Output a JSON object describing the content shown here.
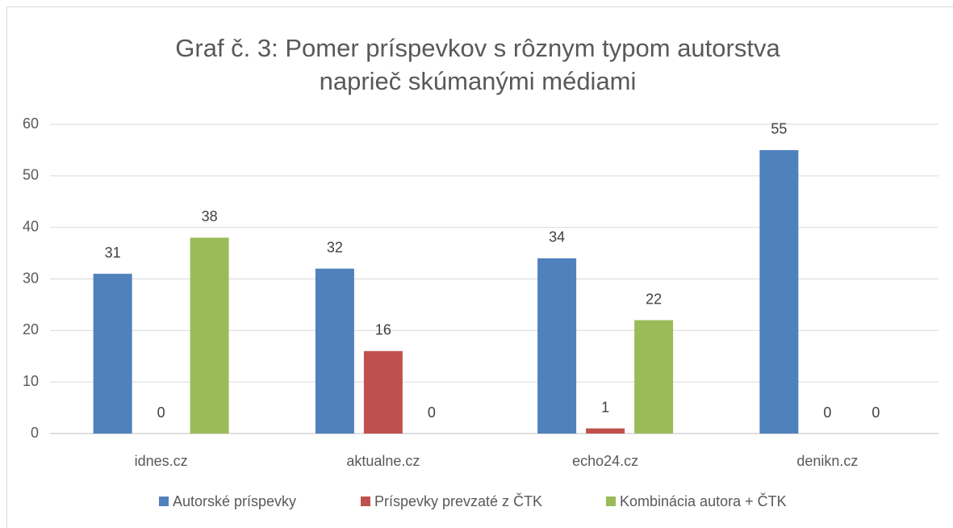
{
  "chart_data": {
    "type": "bar",
    "title": [
      "Graf č. 3: Pomer príspevkov s rôznym typom autorstva",
      "naprieč skúmanými médiami"
    ],
    "categories": [
      "idnes.cz",
      "aktualne.cz",
      "echo24.cz",
      "denikn.cz"
    ],
    "series": [
      {
        "name": "Autorské príspevky",
        "color": "#4f81bd",
        "values": [
          31,
          32,
          34,
          55
        ]
      },
      {
        "name": "Príspevky prevzaté z ČTK",
        "color": "#c0504d",
        "values": [
          0,
          16,
          1,
          0
        ]
      },
      {
        "name": "Kombinácia autora + ČTK",
        "color": "#9bbb59",
        "values": [
          38,
          0,
          22,
          0
        ]
      }
    ],
    "ylim": [
      0,
      60
    ],
    "yticks": [
      0,
      10,
      20,
      30,
      40,
      50,
      60
    ],
    "grid": true,
    "legend": "bottom"
  }
}
